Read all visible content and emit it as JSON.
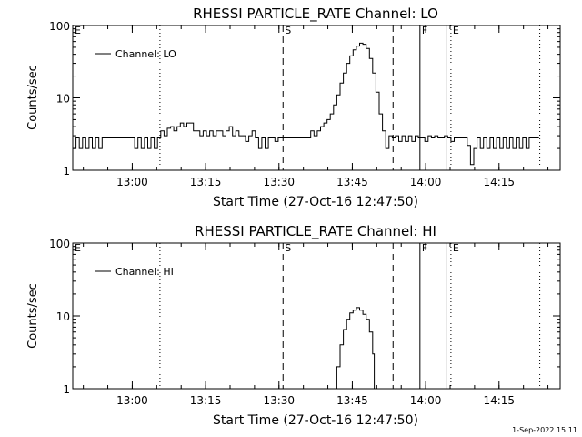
{
  "footer_timestamp": "1-Sep-2022 15:11",
  "chart_data": [
    {
      "type": "line",
      "title": "RHESSI PARTICLE_RATE Channel: LO",
      "xlabel": "Start Time (27-Oct-16 12:47:50)",
      "ylabel": "Counts/sec",
      "yscale": "log",
      "ylim": [
        1,
        100
      ],
      "xlim": [
        "12:47:50",
        "14:27:30"
      ],
      "x_ticks": [
        "13:00",
        "13:15",
        "13:30",
        "13:45",
        "14:00",
        "14:15"
      ],
      "y_ticks": [
        "1",
        "10",
        "100"
      ],
      "legend_label": "Channel: LO",
      "legend_position": "top-left",
      "markers": [
        {
          "label": "E",
          "time": "12:47:50",
          "style": "none"
        },
        {
          "label": "",
          "time": "13:05:40",
          "style": "dotted"
        },
        {
          "label": "S",
          "time": "13:30:50",
          "style": "dashed"
        },
        {
          "label": "",
          "time": "13:53:20",
          "style": "dashed"
        },
        {
          "label": "F",
          "time": "13:58:50",
          "style": "solid"
        },
        {
          "label": "",
          "time": "14:04:20",
          "style": "solid"
        },
        {
          "label": "E",
          "time": "14:05:10",
          "style": "dotted"
        },
        {
          "label": "",
          "time": "14:23:20",
          "style": "dotted"
        }
      ],
      "series": [
        {
          "points": [
            [
              "12:47:50",
              2.0
            ],
            [
              "12:48:30",
              2.8
            ],
            [
              "12:49:10",
              2.0
            ],
            [
              "12:49:50",
              2.8
            ],
            [
              "12:50:30",
              2.0
            ],
            [
              "12:51:10",
              2.8
            ],
            [
              "12:51:50",
              2.0
            ],
            [
              "12:52:30",
              2.8
            ],
            [
              "12:53:10",
              2.0
            ],
            [
              "12:53:50",
              2.8
            ],
            [
              "12:54:30",
              2.8
            ],
            [
              "12:55:10",
              2.8
            ],
            [
              "12:55:50",
              2.8
            ],
            [
              "12:56:30",
              2.8
            ],
            [
              "12:57:10",
              2.8
            ],
            [
              "12:57:50",
              2.8
            ],
            [
              "12:58:30",
              2.8
            ],
            [
              "12:59:10",
              2.8
            ],
            [
              "12:59:50",
              2.8
            ],
            [
              "13:00:30",
              2.0
            ],
            [
              "13:01:10",
              2.8
            ],
            [
              "13:01:50",
              2.0
            ],
            [
              "13:02:30",
              2.8
            ],
            [
              "13:03:10",
              2.0
            ],
            [
              "13:03:50",
              2.8
            ],
            [
              "13:04:30",
              2.0
            ],
            [
              "13:05:10",
              2.8
            ],
            [
              "13:05:50",
              3.5
            ],
            [
              "13:06:30",
              3.0
            ],
            [
              "13:07:10",
              3.8
            ],
            [
              "13:07:50",
              4.0
            ],
            [
              "13:08:30",
              3.5
            ],
            [
              "13:09:10",
              4.0
            ],
            [
              "13:09:50",
              4.5
            ],
            [
              "13:10:30",
              4.0
            ],
            [
              "13:11:10",
              4.5
            ],
            [
              "13:11:50",
              4.5
            ],
            [
              "13:12:30",
              3.5
            ],
            [
              "13:13:10",
              3.5
            ],
            [
              "13:13:50",
              3.0
            ],
            [
              "13:14:30",
              3.5
            ],
            [
              "13:15:10",
              3.0
            ],
            [
              "13:15:50",
              3.5
            ],
            [
              "13:16:30",
              3.0
            ],
            [
              "13:17:10",
              3.5
            ],
            [
              "13:17:50",
              3.5
            ],
            [
              "13:18:30",
              3.0
            ],
            [
              "13:19:10",
              3.5
            ],
            [
              "13:19:50",
              4.0
            ],
            [
              "13:20:30",
              3.0
            ],
            [
              "13:21:10",
              3.5
            ],
            [
              "13:21:50",
              3.0
            ],
            [
              "13:22:30",
              3.0
            ],
            [
              "13:23:10",
              2.5
            ],
            [
              "13:23:50",
              3.0
            ],
            [
              "13:24:30",
              3.5
            ],
            [
              "13:25:10",
              2.8
            ],
            [
              "13:25:50",
              2.0
            ],
            [
              "13:26:30",
              2.8
            ],
            [
              "13:27:10",
              2.0
            ],
            [
              "13:27:50",
              2.8
            ],
            [
              "13:28:30",
              2.8
            ],
            [
              "13:29:10",
              2.5
            ],
            [
              "13:29:50",
              2.8
            ],
            [
              "13:30:30",
              2.8
            ],
            [
              "13:31:10",
              2.8
            ],
            [
              "13:31:50",
              2.8
            ],
            [
              "13:32:30",
              2.8
            ],
            [
              "13:33:10",
              2.8
            ],
            [
              "13:33:50",
              2.8
            ],
            [
              "13:34:30",
              2.8
            ],
            [
              "13:35:10",
              2.8
            ],
            [
              "13:35:50",
              2.8
            ],
            [
              "13:36:30",
              3.5
            ],
            [
              "13:37:10",
              3.0
            ],
            [
              "13:37:50",
              3.5
            ],
            [
              "13:38:30",
              4.0
            ],
            [
              "13:39:10",
              4.5
            ],
            [
              "13:39:50",
              5.0
            ],
            [
              "13:40:30",
              6.0
            ],
            [
              "13:41:10",
              8.0
            ],
            [
              "13:41:50",
              11.0
            ],
            [
              "13:42:30",
              16.0
            ],
            [
              "13:43:10",
              22.0
            ],
            [
              "13:43:50",
              30.0
            ],
            [
              "13:44:30",
              38.0
            ],
            [
              "13:45:10",
              46.0
            ],
            [
              "13:45:50",
              52.0
            ],
            [
              "13:46:30",
              57.0
            ],
            [
              "13:47:10",
              55.0
            ],
            [
              "13:47:50",
              48.0
            ],
            [
              "13:48:30",
              35.0
            ],
            [
              "13:49:10",
              22.0
            ],
            [
              "13:49:50",
              12.0
            ],
            [
              "13:50:30",
              6.0
            ],
            [
              "13:51:10",
              3.5
            ],
            [
              "13:51:50",
              2.0
            ],
            [
              "13:52:30",
              3.0
            ],
            [
              "13:53:10",
              2.8
            ],
            [
              "13:53:50",
              3.0
            ],
            [
              "13:54:30",
              2.5
            ],
            [
              "13:55:10",
              3.0
            ],
            [
              "13:55:50",
              2.5
            ],
            [
              "13:56:30",
              3.0
            ],
            [
              "13:57:10",
              2.5
            ],
            [
              "13:57:50",
              3.0
            ],
            [
              "13:58:30",
              2.8
            ],
            [
              "13:59:10",
              2.8
            ],
            [
              "13:59:50",
              2.5
            ],
            [
              "14:00:30",
              3.0
            ],
            [
              "14:01:10",
              2.8
            ],
            [
              "14:01:50",
              3.0
            ],
            [
              "14:02:30",
              2.8
            ],
            [
              "14:03:10",
              2.8
            ],
            [
              "14:03:50",
              3.0
            ],
            [
              "14:04:30",
              2.8
            ],
            [
              "14:05:10",
              2.5
            ],
            [
              "14:05:50",
              2.8
            ],
            [
              "14:06:30",
              2.8
            ],
            [
              "14:07:10",
              2.8
            ],
            [
              "14:07:50",
              2.8
            ],
            [
              "14:08:30",
              2.2
            ],
            [
              "14:09:10",
              1.2
            ],
            [
              "14:09:50",
              2.0
            ],
            [
              "14:10:30",
              2.8
            ],
            [
              "14:11:10",
              2.0
            ],
            [
              "14:11:50",
              2.8
            ],
            [
              "14:12:30",
              2.0
            ],
            [
              "14:13:10",
              2.8
            ],
            [
              "14:13:50",
              2.0
            ],
            [
              "14:14:30",
              2.8
            ],
            [
              "14:15:10",
              2.0
            ],
            [
              "14:15:50",
              2.8
            ],
            [
              "14:16:30",
              2.0
            ],
            [
              "14:17:10",
              2.8
            ],
            [
              "14:17:50",
              2.0
            ],
            [
              "14:18:30",
              2.8
            ],
            [
              "14:19:10",
              2.0
            ],
            [
              "14:19:50",
              2.8
            ],
            [
              "14:20:30",
              2.0
            ],
            [
              "14:21:10",
              2.8
            ],
            [
              "14:21:50",
              2.8
            ],
            [
              "14:22:30",
              2.8
            ],
            [
              "14:23:10",
              2.8
            ]
          ]
        }
      ]
    },
    {
      "type": "line",
      "title": "RHESSI PARTICLE_RATE Channel: HI",
      "xlabel": "Start Time (27-Oct-16 12:47:50)",
      "ylabel": "Counts/sec",
      "yscale": "log",
      "ylim": [
        1,
        100
      ],
      "xlim": [
        "12:47:50",
        "14:27:30"
      ],
      "x_ticks": [
        "13:00",
        "13:15",
        "13:30",
        "13:45",
        "14:00",
        "14:15"
      ],
      "y_ticks": [
        "1",
        "10",
        "100"
      ],
      "legend_label": "Channel: HI",
      "legend_position": "top-left",
      "markers": [
        {
          "label": "E",
          "time": "12:47:50",
          "style": "none"
        },
        {
          "label": "",
          "time": "13:05:40",
          "style": "dotted"
        },
        {
          "label": "S",
          "time": "13:30:50",
          "style": "dashed"
        },
        {
          "label": "",
          "time": "13:53:20",
          "style": "dashed"
        },
        {
          "label": "F",
          "time": "13:58:50",
          "style": "solid"
        },
        {
          "label": "",
          "time": "14:04:20",
          "style": "solid"
        },
        {
          "label": "E",
          "time": "14:05:10",
          "style": "dotted"
        },
        {
          "label": "",
          "time": "14:23:20",
          "style": "dotted"
        }
      ],
      "series": [
        {
          "points": [
            [
              "13:41:10",
              1.0
            ],
            [
              "13:41:50",
              2.0
            ],
            [
              "13:42:30",
              4.0
            ],
            [
              "13:43:10",
              6.5
            ],
            [
              "13:43:50",
              9.0
            ],
            [
              "13:44:30",
              11.0
            ],
            [
              "13:45:10",
              12.0
            ],
            [
              "13:45:50",
              13.0
            ],
            [
              "13:46:30",
              12.0
            ],
            [
              "13:47:10",
              10.5
            ],
            [
              "13:47:50",
              9.0
            ],
            [
              "13:48:30",
              6.0
            ],
            [
              "13:49:10",
              3.0
            ],
            [
              "13:49:30",
              1.0
            ]
          ]
        }
      ]
    }
  ]
}
